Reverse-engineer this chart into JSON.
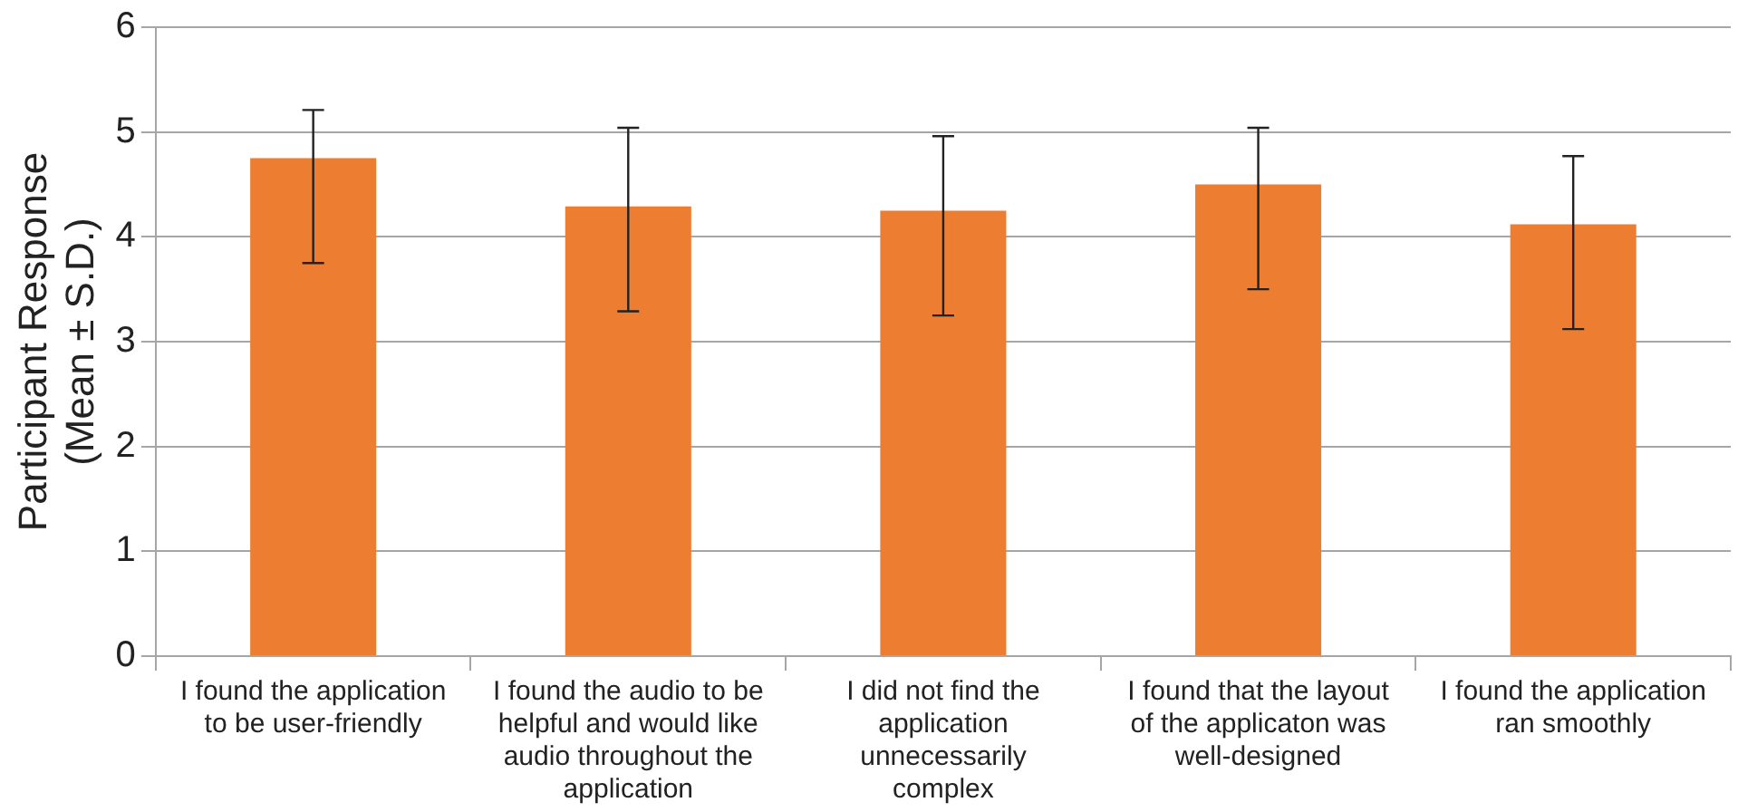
{
  "chart_data": {
    "type": "bar",
    "ylabel": "Participant Response (Mean ± S.D.)",
    "categories": [
      "I found the application to be user-friendly",
      "I found the audio to be helpful and would like audio throughout the application",
      "I did not find the application unnecessarily complex",
      "I found that the layout of the applicaton was well-designed",
      "I found the application ran smoothly"
    ],
    "values": [
      4.75,
      4.29,
      4.25,
      4.5,
      4.12
    ],
    "errors": [
      [
        3.75,
        5.21
      ],
      [
        3.29,
        5.04
      ],
      [
        3.25,
        4.96
      ],
      [
        3.5,
        5.04
      ],
      [
        3.12,
        4.77
      ]
    ],
    "color": "#ed7d31",
    "ylim": [
      0,
      6
    ],
    "yticks": [
      0,
      1,
      2,
      3,
      4,
      5,
      6
    ],
    "grid": "y"
  }
}
